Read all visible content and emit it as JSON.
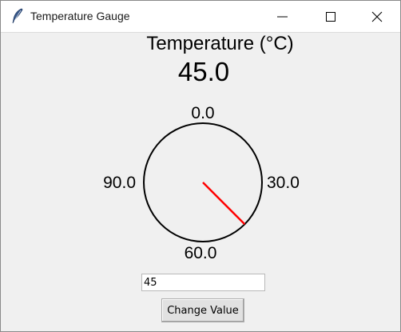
{
  "window": {
    "title": "Temperature Gauge"
  },
  "gauge": {
    "title": "Temperature (°C)",
    "value_text": "45.0",
    "value": 45.0,
    "scale_max": 120,
    "tick_labels": {
      "top": "0.0",
      "right": "30.0",
      "bottom": "60.0",
      "left": "90.0"
    },
    "needle_color": "#ff0000",
    "dial_color": "#000000"
  },
  "controls": {
    "input_value": "45",
    "button_label": "Change Value"
  }
}
